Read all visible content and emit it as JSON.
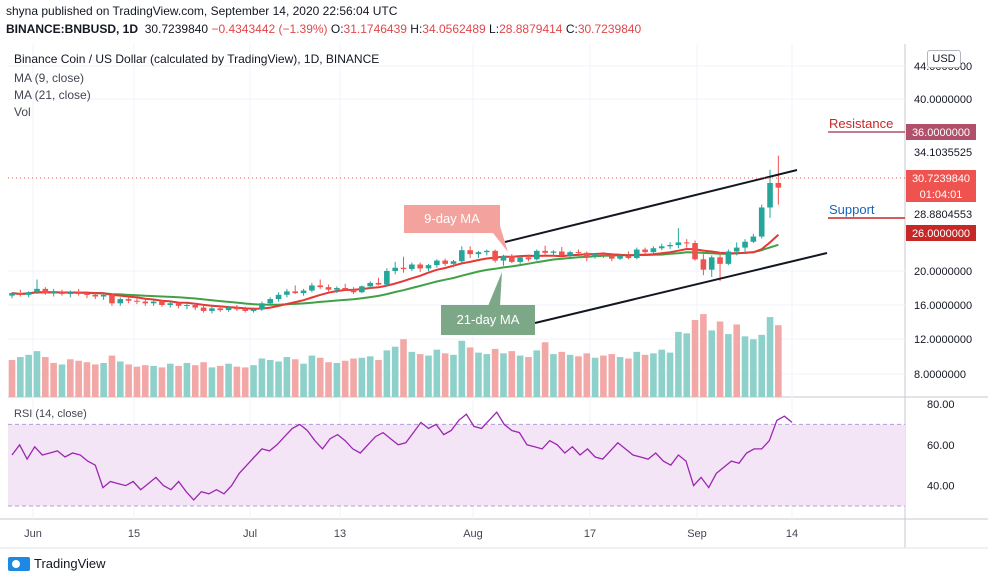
{
  "header": {
    "publisher": "shyna published on TradingView.com, September 14, 2020 22:56:04 UTC",
    "symbol": "BINANCE:BNBUSD, 1D",
    "last": "30.7239840",
    "change": "−0.4343442 (−1.39%)",
    "o_label": "O:",
    "o": "31.1746439",
    "h_label": "H:",
    "h": "34.0562489",
    "l_label": "L:",
    "l": "28.8879414",
    "c_label": "C:",
    "c": "30.7239840"
  },
  "legend": {
    "title": "Binance Coin / US Dollar (calculated by TradingView), 1D, BINANCE",
    "ma9": "MA (9, close)",
    "ma21": "MA (21, close)",
    "vol": "Vol"
  },
  "rsi_label": "RSI (14, close)",
  "currency": "USD",
  "brand": "TradingView",
  "colors": {
    "up": "#26a69a",
    "down": "#ef5350",
    "ma9": "#e53935",
    "ma21": "#43a047",
    "rsi": "#9c27b0",
    "rsi_band": "#f3e5f5",
    "resistance": "#b0506a",
    "support": "#c62828",
    "last_price": "#ef5350",
    "callout_ma9": "#f4a29d",
    "callout_ma21": "#7da888"
  },
  "chart_data": [
    {
      "type": "candlestick",
      "x_ticks": [
        "Jun",
        "15",
        "Jul",
        "13",
        "Aug",
        "17",
        "Sep",
        "14"
      ],
      "y_ticks": [
        "44.0000000",
        "40.0000000",
        "20.0000000",
        "16.0000000",
        "12.0000000",
        "8.0000000"
      ],
      "ylim": [
        6,
        46
      ],
      "candles": [
        [
          17.1,
          17.5,
          16.8,
          17.4
        ],
        [
          17.4,
          17.8,
          17.0,
          17.2
        ],
        [
          17.2,
          17.6,
          16.9,
          17.5
        ],
        [
          17.5,
          19.0,
          17.3,
          17.9
        ],
        [
          17.9,
          18.1,
          17.2,
          17.4
        ],
        [
          17.4,
          17.9,
          17.0,
          17.6
        ],
        [
          17.6,
          17.8,
          17.1,
          17.3
        ],
        [
          17.3,
          17.7,
          16.9,
          17.5
        ],
        [
          17.5,
          17.9,
          17.1,
          17.3
        ],
        [
          17.3,
          17.6,
          16.8,
          17.2
        ],
        [
          17.2,
          17.5,
          16.7,
          17.0
        ],
        [
          17.0,
          17.4,
          16.6,
          17.2
        ],
        [
          17.2,
          17.3,
          15.9,
          16.2
        ],
        [
          16.2,
          16.9,
          15.9,
          16.7
        ],
        [
          16.7,
          17.0,
          16.2,
          16.5
        ],
        [
          16.5,
          16.8,
          16.1,
          16.4
        ],
        [
          16.4,
          16.7,
          15.9,
          16.2
        ],
        [
          16.2,
          16.6,
          15.9,
          16.4
        ],
        [
          16.4,
          16.6,
          15.8,
          16.0
        ],
        [
          16.0,
          16.4,
          15.7,
          16.2
        ],
        [
          16.2,
          16.4,
          15.6,
          15.9
        ],
        [
          15.9,
          16.3,
          15.5,
          16.0
        ],
        [
          16.0,
          16.2,
          15.4,
          15.7
        ],
        [
          15.7,
          16.0,
          15.1,
          15.3
        ],
        [
          15.3,
          15.8,
          15.0,
          15.6
        ],
        [
          15.6,
          15.9,
          15.2,
          15.4
        ],
        [
          15.4,
          15.9,
          15.2,
          15.7
        ],
        [
          15.7,
          16.0,
          15.3,
          15.5
        ],
        [
          15.5,
          15.8,
          15.1,
          15.3
        ],
        [
          15.3,
          15.7,
          15.1,
          15.5
        ],
        [
          15.5,
          16.4,
          15.3,
          16.2
        ],
        [
          16.2,
          16.9,
          16.0,
          16.7
        ],
        [
          16.7,
          17.5,
          16.4,
          17.2
        ],
        [
          17.2,
          17.9,
          16.9,
          17.6
        ],
        [
          17.6,
          18.3,
          17.3,
          17.4
        ],
        [
          17.4,
          17.9,
          17.1,
          17.7
        ],
        [
          17.7,
          18.6,
          17.5,
          18.3
        ],
        [
          18.3,
          19.0,
          17.9,
          18.1
        ],
        [
          18.1,
          18.4,
          17.6,
          17.8
        ],
        [
          17.8,
          18.2,
          17.4,
          18.0
        ],
        [
          18.0,
          18.5,
          17.7,
          17.8
        ],
        [
          17.8,
          18.1,
          17.3,
          17.5
        ],
        [
          17.5,
          18.3,
          17.4,
          18.2
        ],
        [
          18.2,
          18.8,
          17.9,
          18.6
        ],
        [
          18.6,
          19.2,
          18.3,
          18.4
        ],
        [
          18.4,
          20.4,
          18.2,
          20.0
        ],
        [
          20.0,
          21.4,
          19.6,
          20.5
        ],
        [
          20.5,
          22.2,
          19.8,
          20.3
        ],
        [
          20.3,
          21.3,
          20.0,
          21.0
        ],
        [
          21.0,
          21.3,
          19.9,
          20.4
        ],
        [
          20.4,
          21.1,
          20.0,
          20.9
        ],
        [
          20.9,
          21.8,
          20.5,
          21.6
        ],
        [
          21.6,
          21.9,
          20.8,
          21.1
        ],
        [
          21.1,
          21.7,
          20.6,
          21.5
        ],
        [
          21.5,
          23.8,
          21.3,
          23.2
        ],
        [
          23.2,
          23.8,
          22.0,
          22.6
        ],
        [
          22.6,
          23.1,
          22.0,
          22.9
        ],
        [
          22.9,
          23.3,
          22.4,
          23.1
        ],
        [
          23.1,
          23.3,
          21.3,
          21.6
        ],
        [
          21.6,
          22.5,
          20.8,
          22.3
        ],
        [
          22.3,
          22.6,
          21.2,
          21.4
        ],
        [
          21.4,
          22.3,
          21.1,
          22.1
        ],
        [
          22.1,
          22.5,
          21.5,
          21.8
        ],
        [
          21.8,
          23.3,
          21.6,
          23.1
        ],
        [
          23.1,
          23.9,
          22.5,
          22.8
        ],
        [
          22.8,
          23.2,
          22.3,
          23.0
        ],
        [
          23.0,
          23.7,
          22.2,
          22.4
        ],
        [
          22.4,
          23.1,
          22.0,
          22.9
        ],
        [
          22.9,
          23.3,
          22.6,
          22.8
        ],
        [
          22.8,
          23.0,
          21.5,
          22.2
        ],
        [
          22.2,
          22.8,
          21.9,
          22.6
        ],
        [
          22.6,
          22.9,
          22.0,
          22.4
        ],
        [
          22.4,
          22.8,
          21.5,
          21.9
        ],
        [
          21.9,
          22.6,
          21.7,
          22.3
        ],
        [
          22.3,
          23.0,
          21.8,
          22.0
        ],
        [
          22.0,
          23.6,
          21.8,
          23.3
        ],
        [
          23.3,
          23.6,
          22.6,
          22.9
        ],
        [
          22.9,
          23.8,
          22.6,
          23.5
        ],
        [
          23.5,
          24.2,
          23.2,
          23.8
        ],
        [
          23.8,
          24.4,
          23.4,
          24.0
        ],
        [
          24.0,
          26.4,
          23.5,
          24.4
        ],
        [
          24.4,
          24.9,
          23.6,
          24.3
        ],
        [
          24.3,
          24.7,
          21.6,
          21.8
        ],
        [
          21.8,
          22.6,
          19.5,
          20.2
        ],
        [
          20.2,
          22.4,
          19.3,
          22.1
        ],
        [
          22.1,
          22.9,
          18.8,
          21.1
        ],
        [
          21.1,
          23.3,
          20.9,
          23.0
        ],
        [
          23.0,
          24.4,
          22.4,
          23.6
        ],
        [
          23.6,
          24.9,
          22.6,
          24.5
        ],
        [
          24.5,
          25.7,
          24.3,
          25.3
        ],
        [
          25.3,
          28.9,
          25.0,
          28.6
        ],
        [
          28.6,
          32.6,
          27.5,
          31.2
        ],
        [
          31.2,
          34.1,
          28.9,
          30.7
        ]
      ],
      "volume": [
        [
          5.0,
          "down"
        ],
        [
          5.4,
          "up"
        ],
        [
          5.7,
          "up"
        ],
        [
          6.2,
          "up"
        ],
        [
          5.4,
          "down"
        ],
        [
          4.6,
          "down"
        ],
        [
          4.4,
          "up"
        ],
        [
          5.1,
          "down"
        ],
        [
          4.9,
          "down"
        ],
        [
          4.7,
          "down"
        ],
        [
          4.4,
          "down"
        ],
        [
          4.6,
          "up"
        ],
        [
          5.6,
          "down"
        ],
        [
          4.8,
          "up"
        ],
        [
          4.4,
          "down"
        ],
        [
          4.1,
          "down"
        ],
        [
          4.3,
          "down"
        ],
        [
          4.2,
          "up"
        ],
        [
          4.0,
          "down"
        ],
        [
          4.5,
          "up"
        ],
        [
          4.2,
          "down"
        ],
        [
          4.6,
          "up"
        ],
        [
          4.3,
          "down"
        ],
        [
          4.7,
          "down"
        ],
        [
          4.0,
          "up"
        ],
        [
          4.2,
          "down"
        ],
        [
          4.5,
          "up"
        ],
        [
          4.1,
          "down"
        ],
        [
          4.0,
          "down"
        ],
        [
          4.3,
          "up"
        ],
        [
          5.2,
          "up"
        ],
        [
          5.0,
          "up"
        ],
        [
          4.8,
          "up"
        ],
        [
          5.4,
          "up"
        ],
        [
          5.1,
          "down"
        ],
        [
          4.5,
          "up"
        ],
        [
          5.6,
          "up"
        ],
        [
          5.3,
          "down"
        ],
        [
          4.7,
          "down"
        ],
        [
          4.6,
          "up"
        ],
        [
          4.9,
          "down"
        ],
        [
          5.2,
          "down"
        ],
        [
          5.3,
          "up"
        ],
        [
          5.5,
          "up"
        ],
        [
          5.0,
          "down"
        ],
        [
          6.3,
          "up"
        ],
        [
          6.8,
          "up"
        ],
        [
          7.8,
          "down"
        ],
        [
          6.1,
          "up"
        ],
        [
          5.8,
          "down"
        ],
        [
          5.6,
          "up"
        ],
        [
          6.4,
          "up"
        ],
        [
          5.9,
          "down"
        ],
        [
          5.7,
          "up"
        ],
        [
          7.6,
          "up"
        ],
        [
          6.7,
          "down"
        ],
        [
          6.0,
          "up"
        ],
        [
          5.8,
          "up"
        ],
        [
          6.5,
          "down"
        ],
        [
          5.9,
          "up"
        ],
        [
          6.2,
          "down"
        ],
        [
          5.6,
          "up"
        ],
        [
          5.4,
          "down"
        ],
        [
          6.3,
          "up"
        ],
        [
          7.4,
          "down"
        ],
        [
          5.8,
          "up"
        ],
        [
          6.1,
          "down"
        ],
        [
          5.7,
          "up"
        ],
        [
          5.5,
          "down"
        ],
        [
          5.9,
          "down"
        ],
        [
          5.3,
          "up"
        ],
        [
          5.6,
          "down"
        ],
        [
          5.8,
          "down"
        ],
        [
          5.4,
          "up"
        ],
        [
          5.2,
          "down"
        ],
        [
          6.1,
          "up"
        ],
        [
          5.7,
          "down"
        ],
        [
          5.9,
          "up"
        ],
        [
          6.4,
          "up"
        ],
        [
          6.0,
          "up"
        ],
        [
          8.8,
          "up"
        ],
        [
          8.6,
          "up"
        ],
        [
          10.4,
          "down"
        ],
        [
          11.2,
          "down"
        ],
        [
          9.0,
          "up"
        ],
        [
          10.2,
          "down"
        ],
        [
          8.5,
          "up"
        ],
        [
          9.8,
          "down"
        ],
        [
          8.2,
          "up"
        ],
        [
          7.8,
          "up"
        ],
        [
          8.4,
          "up"
        ],
        [
          10.8,
          "up"
        ],
        [
          9.7,
          "down"
        ]
      ],
      "ma9_color": "#e53935",
      "ma21_color": "#43a047",
      "price_labels": [
        "36.0000000",
        "34.1035525",
        "30.7239840",
        "01:04:01",
        "28.8804553",
        "26.0000000"
      ],
      "annotations": [
        "Resistance",
        "Support",
        "9-day MA",
        "21-day MA"
      ]
    },
    {
      "type": "line",
      "title": "RSI (14, close)",
      "y_ticks": [
        "80.00",
        "60.00",
        "40.00"
      ],
      "ylim": [
        25,
        85
      ],
      "band": [
        30,
        70
      ],
      "values": [
        55,
        60,
        53,
        59,
        55,
        56,
        57,
        54,
        56,
        55,
        52,
        50,
        39,
        42,
        41,
        40,
        42,
        38,
        41,
        44,
        40,
        38,
        42,
        37,
        33,
        37,
        36,
        38,
        36,
        40,
        46,
        50,
        54,
        58,
        57,
        60,
        64,
        68,
        70,
        67,
        62,
        58,
        63,
        65,
        62,
        58,
        56,
        60,
        64,
        66,
        63,
        60,
        61,
        66,
        71,
        68,
        70,
        65,
        67,
        72,
        75,
        69,
        68,
        72,
        76,
        70,
        67,
        66,
        60,
        59,
        58,
        62,
        60,
        56,
        59,
        55,
        58,
        54,
        53,
        57,
        61,
        58,
        55,
        54,
        53,
        56,
        52,
        50,
        55,
        52,
        40,
        44,
        39,
        46,
        49,
        52,
        51,
        56,
        58,
        58,
        62,
        72,
        74,
        71
      ]
    }
  ]
}
